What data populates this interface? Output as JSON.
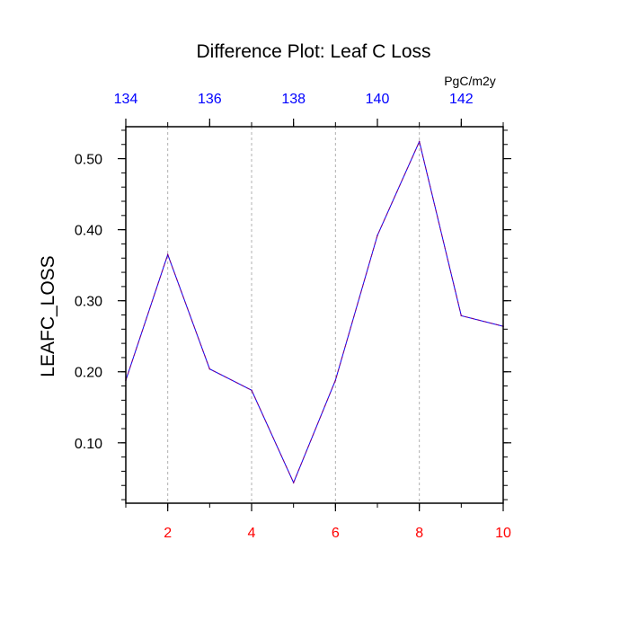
{
  "chart_data": {
    "type": "line",
    "title": "Difference Plot: Leaf C Loss",
    "units": "PgC/m2y",
    "ylabel": "LEAFC_LOSS",
    "xlabel": "",
    "xlim": [
      1,
      10
    ],
    "ylim": [
      0.015,
      0.545
    ],
    "x_ticks": [
      2,
      4,
      6,
      8,
      10
    ],
    "x_tick_labels": [
      "2",
      "4",
      "6",
      "8",
      "10"
    ],
    "x_tick_color": "#ff0000",
    "top_ticks": [
      134,
      136,
      138,
      140,
      142
    ],
    "top_tick_labels": [
      "134",
      "136",
      "138",
      "140",
      "142"
    ],
    "top_tick_color": "#0000ff",
    "top_range": [
      134,
      143
    ],
    "y_ticks": [
      0.1,
      0.2,
      0.3,
      0.4,
      0.5
    ],
    "y_tick_labels": [
      "0.10",
      "0.20",
      "0.30",
      "0.40",
      "0.50"
    ],
    "vertical_grid": true,
    "series": [
      {
        "x": [
          1,
          2,
          3,
          4,
          5,
          6,
          7,
          8,
          9,
          10
        ],
        "values": [
          0.188,
          0.365,
          0.204,
          0.174,
          0.044,
          0.188,
          0.392,
          0.524,
          0.279,
          0.264
        ],
        "color": "#800080",
        "color_alt": "#0000ff",
        "style": "dashed"
      }
    ]
  }
}
